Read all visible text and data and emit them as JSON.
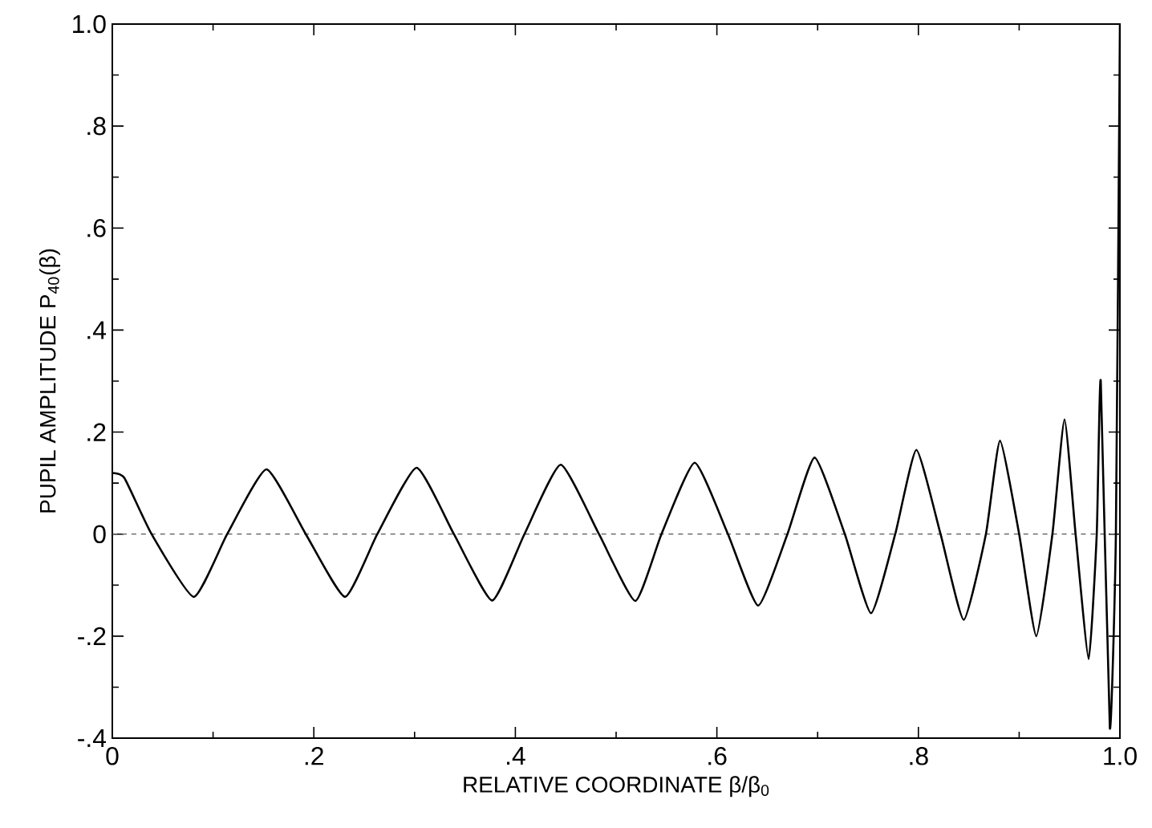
{
  "chart_data": {
    "type": "line",
    "xlabel": "RELATIVE COORDINATE β/β$_{0}$",
    "ylabel": "PUPIL AMPLITUDE  P$_{40}$(β)",
    "color": "#000000",
    "line_style": "solid",
    "marker": "none",
    "grid": false,
    "x": [
      0,
      0.012,
      0.039,
      0.081,
      0.114,
      0.153,
      0.192,
      0.231,
      0.263,
      0.302,
      0.339,
      0.377,
      0.409,
      0.445,
      0.483,
      0.519,
      0.545,
      0.578,
      0.611,
      0.641,
      0.67,
      0.697,
      0.727,
      0.753,
      0.777,
      0.798,
      0.822,
      0.845,
      0.867,
      0.881,
      0.9,
      0.917,
      0.933,
      0.945,
      0.956,
      0.969,
      0.977,
      0.981,
      0.99,
      0.996,
      1.0
    ],
    "values": [
      0.12,
      0.11,
      0,
      -0.123,
      0,
      0.127,
      0,
      -0.123,
      0,
      0.13,
      0,
      -0.13,
      0,
      0.136,
      0,
      -0.131,
      0,
      0.14,
      0,
      -0.14,
      0,
      0.15,
      0,
      -0.155,
      0,
      0.165,
      0,
      -0.168,
      0,
      0.183,
      0,
      -0.2,
      0,
      0.225,
      0,
      -0.245,
      0,
      0.3,
      -0.38,
      0,
      1.0
    ],
    "xlim": [
      0,
      1.0
    ],
    "ylim": [
      -0.4,
      1.0
    ],
    "xticks": [
      0,
      {
        "value": 0.2,
        "label": ".2"
      },
      {
        "value": 0.4,
        "label": ".4"
      },
      {
        "value": 0.6,
        "label": ".6"
      },
      {
        "value": 0.8,
        "label": ".8"
      },
      {
        "value": 1.0,
        "label": "1.0"
      }
    ],
    "yticks": [
      {
        "value": -0.4,
        "label": "-.4"
      },
      {
        "value": -0.2,
        "label": "-.2"
      },
      0,
      {
        "value": 0.2,
        "label": ".2"
      },
      {
        "value": 0.4,
        "label": ".4"
      },
      {
        "value": 0.6,
        "label": ".6"
      },
      {
        "value": 0.8,
        "label": ".8"
      },
      {
        "value": 1.0,
        "label": "1.0"
      }
    ],
    "ref_lines": [
      {
        "axis": "y",
        "value": 0,
        "line_style": "dashed",
        "color": "#555555"
      }
    ]
  }
}
